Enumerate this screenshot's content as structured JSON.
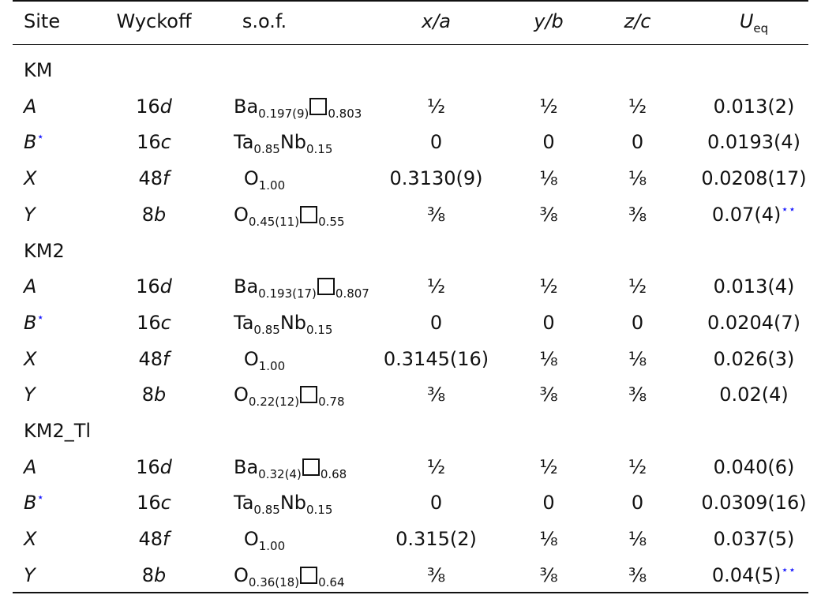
{
  "headers": {
    "site": "Site",
    "wyckoff": "Wyckoff",
    "sof": "s.o.f.",
    "xa": "x/a",
    "yb": "y/b",
    "zc": "z/c",
    "ueq_main": "U",
    "ueq_sub": "eq"
  },
  "groups": [
    {
      "name": "KM",
      "rows": [
        {
          "site": "A",
          "star": "",
          "wyck_num": "16",
          "wyck_letter": "d",
          "el1": "Ba",
          "s1": "0.197(9)",
          "el2": "",
          "s2": "0.803",
          "vac": true,
          "x": "½",
          "y": "½",
          "z": "½",
          "ueq": "0.013(2)",
          "ueq_star": ""
        },
        {
          "site": "B",
          "star": "⋆",
          "wyck_num": "16",
          "wyck_letter": "c",
          "el1": "Ta",
          "s1": "0.85",
          "el2": "Nb",
          "s2": "0.15",
          "vac": false,
          "x": "0",
          "y": "0",
          "z": "0",
          "ueq": "0.0193(4)",
          "ueq_star": ""
        },
        {
          "site": "X",
          "star": "",
          "wyck_num": "48",
          "wyck_letter": "f",
          "el1": "O",
          "s1": "1.00",
          "el2": "",
          "s2": "",
          "vac": false,
          "x": "0.3130(9)",
          "y": "⅛",
          "z": "⅛",
          "ueq": "0.0208(17)",
          "ueq_star": ""
        },
        {
          "site": "Y",
          "star": "",
          "wyck_num": "8",
          "wyck_letter": "b",
          "el1": "O",
          "s1": "0.45(11)",
          "el2": "",
          "s2": "0.55",
          "vac": true,
          "x": "⅜",
          "y": "⅜",
          "z": "⅜",
          "ueq": "0.07(4)",
          "ueq_star": "⋆⋆"
        }
      ]
    },
    {
      "name": "KM2",
      "rows": [
        {
          "site": "A",
          "star": "",
          "wyck_num": "16",
          "wyck_letter": "d",
          "el1": "Ba",
          "s1": "0.193(17)",
          "el2": "",
          "s2": "0.807",
          "vac": true,
          "x": "½",
          "y": "½",
          "z": "½",
          "ueq": "0.013(4)",
          "ueq_star": ""
        },
        {
          "site": "B",
          "star": "⋆",
          "wyck_num": "16",
          "wyck_letter": "c",
          "el1": "Ta",
          "s1": "0.85",
          "el2": "Nb",
          "s2": "0.15",
          "vac": false,
          "x": "0",
          "y": "0",
          "z": "0",
          "ueq": "0.0204(7)",
          "ueq_star": ""
        },
        {
          "site": "X",
          "star": "",
          "wyck_num": "48",
          "wyck_letter": "f",
          "el1": "O",
          "s1": "1.00",
          "el2": "",
          "s2": "",
          "vac": false,
          "x": "0.3145(16)",
          "y": "⅛",
          "z": "⅛",
          "ueq": "0.026(3)",
          "ueq_star": ""
        },
        {
          "site": "Y",
          "star": "",
          "wyck_num": "8",
          "wyck_letter": "b",
          "el1": "O",
          "s1": "0.22(12)",
          "el2": "",
          "s2": "0.78",
          "vac": true,
          "x": "⅜",
          "y": "⅜",
          "z": "⅜",
          "ueq": "0.02(4)",
          "ueq_star": ""
        }
      ]
    },
    {
      "name": "KM2_Tl",
      "rows": [
        {
          "site": "A",
          "star": "",
          "wyck_num": "16",
          "wyck_letter": "d",
          "el1": "Ba",
          "s1": "0.32(4)",
          "el2": "",
          "s2": "0.68",
          "vac": true,
          "x": "½",
          "y": "½",
          "z": "½",
          "ueq": "0.040(6)",
          "ueq_star": ""
        },
        {
          "site": "B",
          "star": "⋆",
          "wyck_num": "16",
          "wyck_letter": "c",
          "el1": "Ta",
          "s1": "0.85",
          "el2": "Nb",
          "s2": "0.15",
          "vac": false,
          "x": "0",
          "y": "0",
          "z": "0",
          "ueq": "0.0309(16)",
          "ueq_star": ""
        },
        {
          "site": "X",
          "star": "",
          "wyck_num": "48",
          "wyck_letter": "f",
          "el1": "O",
          "s1": "1.00",
          "el2": "",
          "s2": "",
          "vac": false,
          "x": "0.315(2)",
          "y": "⅛",
          "z": "⅛",
          "ueq": "0.037(5)",
          "ueq_star": ""
        },
        {
          "site": "Y",
          "star": "",
          "wyck_num": "8",
          "wyck_letter": "b",
          "el1": "O",
          "s1": "0.36(18)",
          "el2": "",
          "s2": "0.64",
          "vac": true,
          "x": "⅜",
          "y": "⅜",
          "z": "⅜",
          "ueq": "0.04(5)",
          "ueq_star": "⋆⋆"
        }
      ]
    }
  ]
}
